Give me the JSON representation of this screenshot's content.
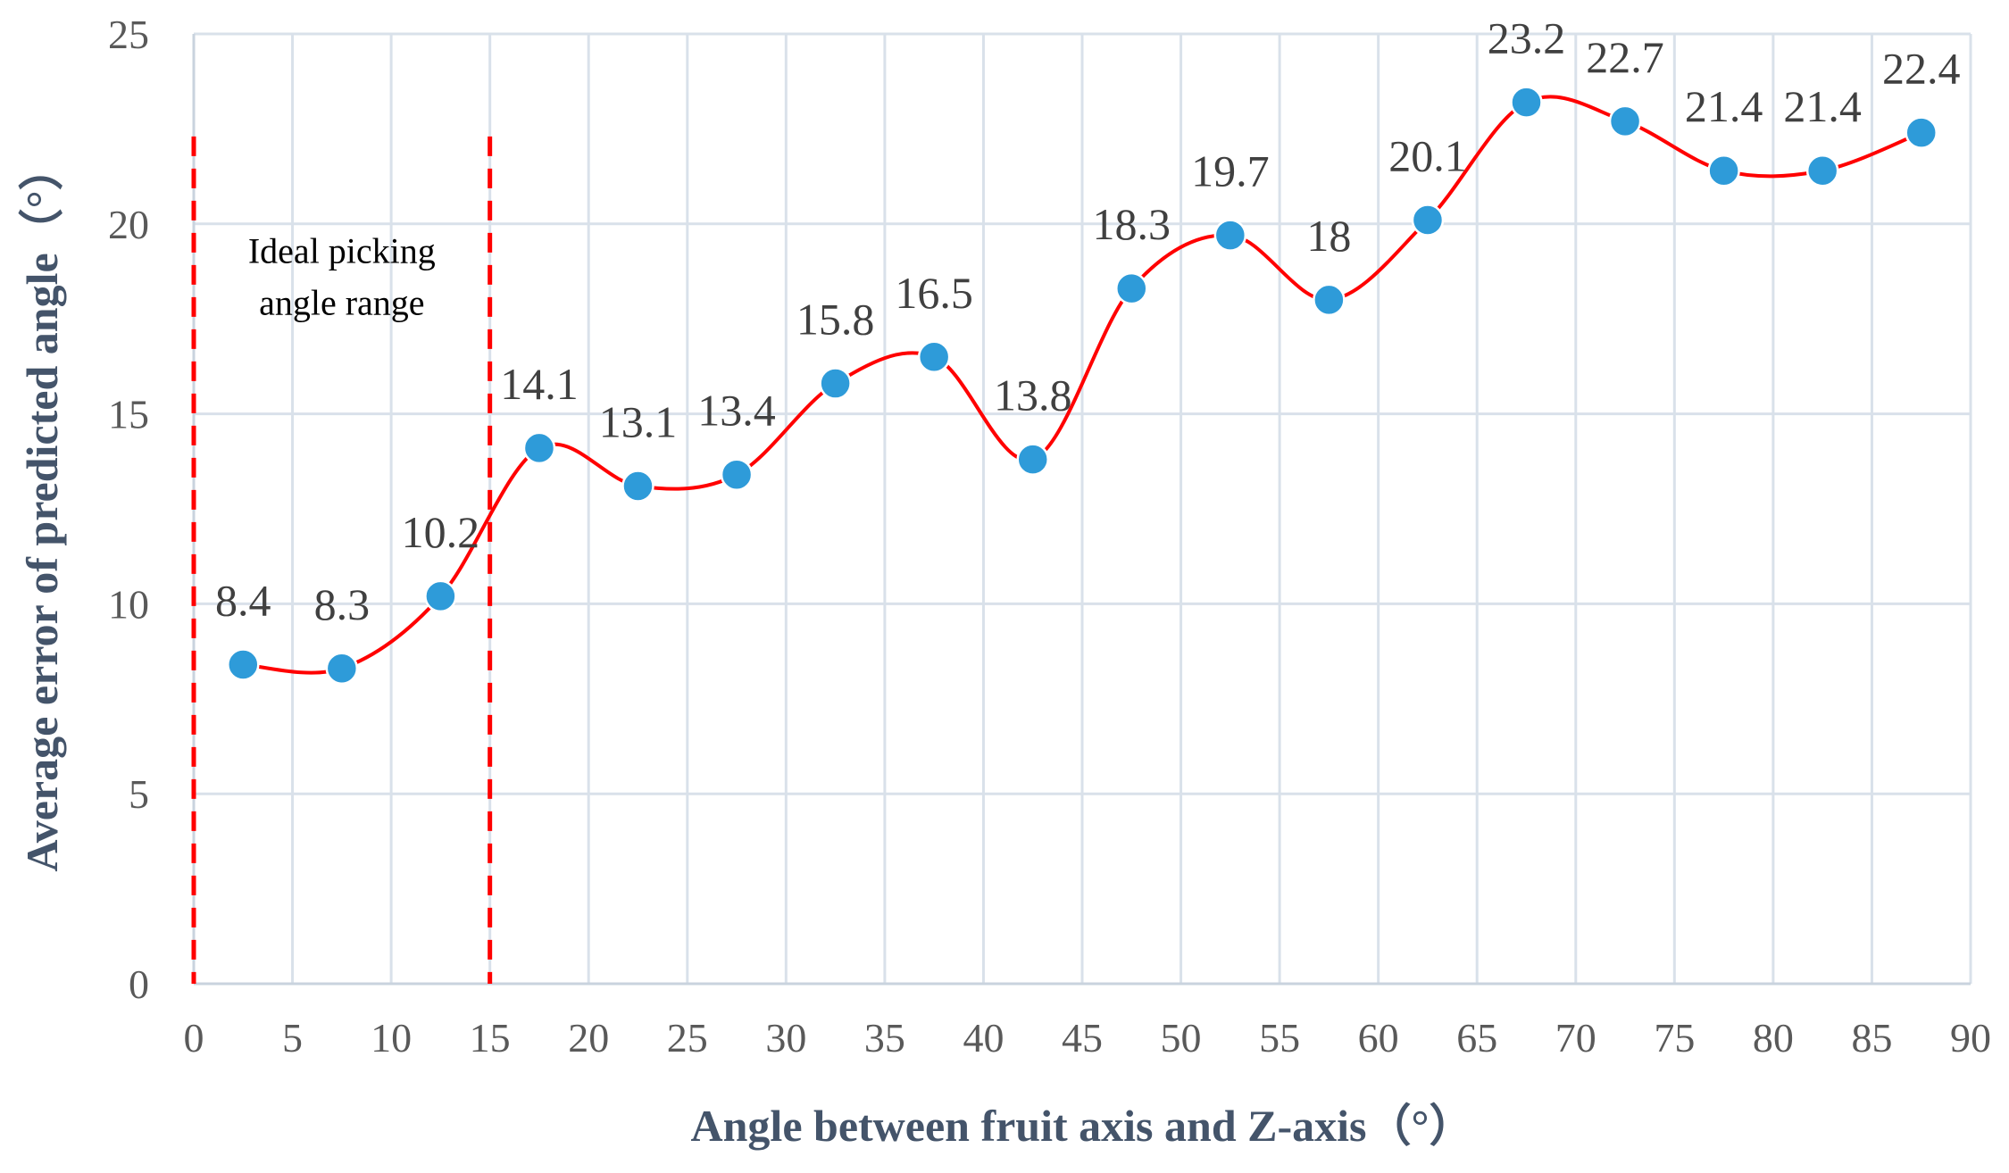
{
  "chart_data": {
    "type": "line",
    "smooth": true,
    "xlabel": "Angle between fruit axis and Z-axis（°）",
    "ylabel": "Average error of predicted angle（°）",
    "xlim": [
      0,
      90
    ],
    "ylim": [
      0,
      25
    ],
    "x_ticks": [
      0,
      5,
      10,
      15,
      20,
      25,
      30,
      35,
      40,
      45,
      50,
      55,
      60,
      65,
      70,
      75,
      80,
      85,
      90
    ],
    "y_ticks": [
      0,
      5,
      10,
      15,
      20,
      25
    ],
    "grid": true,
    "x": [
      2.5,
      7.5,
      12.5,
      17.5,
      22.5,
      27.5,
      32.5,
      37.5,
      42.5,
      47.5,
      52.5,
      57.5,
      62.5,
      67.5,
      72.5,
      77.5,
      82.5,
      87.5
    ],
    "values": [
      8.4,
      8.3,
      10.2,
      14.1,
      13.1,
      13.4,
      15.8,
      16.5,
      13.8,
      18.3,
      19.7,
      18,
      20.1,
      23.2,
      22.7,
      21.4,
      21.4,
      22.4
    ],
    "data_labels": [
      "8.4",
      "8.3",
      "10.2",
      "14.1",
      "13.1",
      "13.4",
      "15.8",
      "16.5",
      "13.8",
      "18.3",
      "19.7",
      "18",
      "20.1",
      "23.2",
      "22.7",
      "21.4",
      "21.4",
      "22.4"
    ],
    "reference_lines": [
      {
        "axis": "x",
        "value": 0,
        "style": "dashed"
      },
      {
        "axis": "x",
        "value": 15,
        "style": "dashed"
      }
    ],
    "annotation": {
      "lines": [
        "Ideal picking",
        "angle range"
      ],
      "x": 7.5,
      "y": 19
    },
    "colors": {
      "line": "#ff0000",
      "marker": "#2e9bd9",
      "reference": "#ff0000",
      "grid": "#d9e1ea"
    }
  }
}
